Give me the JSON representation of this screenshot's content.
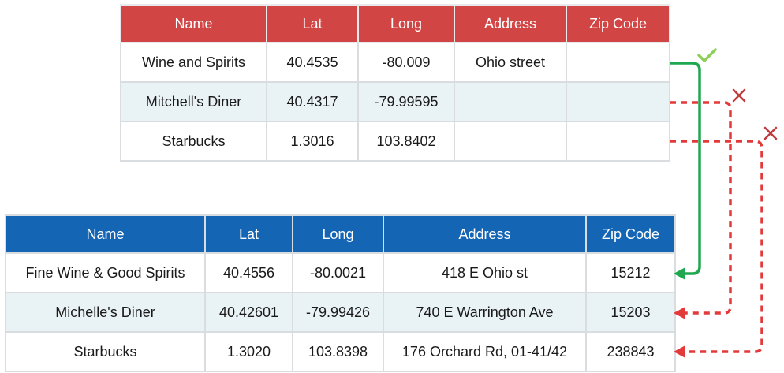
{
  "source_table": {
    "headers": [
      "Name",
      "Lat",
      "Long",
      "Address",
      "Zip Code"
    ],
    "rows": [
      [
        "Wine and Spirits",
        "40.4535",
        "-80.009",
        "Ohio street",
        ""
      ],
      [
        "Mitchell's Diner",
        "40.4317",
        "-79.99595",
        "",
        ""
      ],
      [
        "Starbucks",
        "1.3016",
        "103.8402",
        "",
        ""
      ]
    ]
  },
  "target_table": {
    "headers": [
      "Name",
      "Lat",
      "Long",
      "Address",
      "Zip Code"
    ],
    "rows": [
      [
        "Fine Wine & Good Spirits",
        "40.4556",
        "-80.0021",
        "418 E Ohio st",
        "15212"
      ],
      [
        "Michelle's Diner",
        "40.42601",
        "-79.99426",
        "740 E Warrington Ave",
        "15203"
      ],
      [
        "Starbucks",
        "1.3020",
        "103.8398",
        "176 Orchard Rd, 01-41/42",
        "238843"
      ]
    ]
  },
  "mappings": [
    {
      "status": "match",
      "symbol": "check-icon"
    },
    {
      "status": "mismatch",
      "symbol": "cross-icon"
    },
    {
      "status": "mismatch",
      "symbol": "cross-icon"
    }
  ],
  "colors": {
    "source_header": "#d24545",
    "target_header": "#1565b5",
    "alt_row": "#e9f2f5",
    "match_arrow": "#1fa84f",
    "match_check": "#8fcf5a",
    "mismatch_arrow": "#e23a3a",
    "mismatch_cross": "#c0393b"
  }
}
